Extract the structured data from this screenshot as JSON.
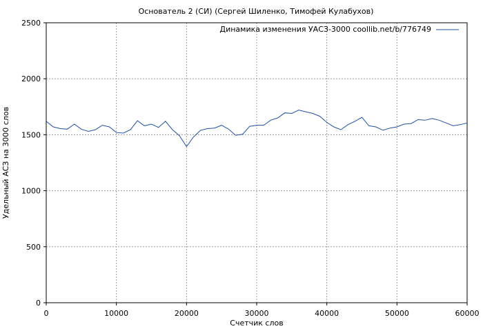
{
  "chart_data": {
    "type": "line",
    "title": "Основатель 2 (СИ) (Сергей Шиленко, Тимофей Кулабухов)",
    "xlabel": "Счетчик слов",
    "ylabel": "Удельный АСЗ на 3000 слов",
    "xlim": [
      0,
      60000
    ],
    "ylim": [
      0,
      2500
    ],
    "x_ticks": [
      0,
      10000,
      20000,
      30000,
      40000,
      50000,
      60000
    ],
    "x_tick_labels": [
      "0",
      "10000",
      "20000",
      "30000",
      "40000",
      "50000",
      "60000"
    ],
    "y_ticks": [
      0,
      500,
      1000,
      1500,
      2000,
      2500
    ],
    "y_tick_labels": [
      "0",
      "500",
      "1000",
      "1500",
      "2000",
      "2500"
    ],
    "grid": true,
    "legend_position": "top-right",
    "colors": {
      "series": "#1f4fa3",
      "grid": "#a0a0a0",
      "axis": "#000000"
    },
    "series": [
      {
        "name": "Динамика изменения УАСЗ-3000 coollib.net/b/776749",
        "x": [
          0,
          1000,
          2000,
          3000,
          4000,
          5000,
          6000,
          7000,
          8000,
          9000,
          10000,
          11000,
          12000,
          13000,
          14000,
          15000,
          16000,
          17000,
          18000,
          19000,
          20000,
          21000,
          22000,
          23000,
          24000,
          25000,
          26000,
          27000,
          28000,
          29000,
          30000,
          31000,
          32000,
          33000,
          34000,
          35000,
          36000,
          37000,
          38000,
          39000,
          40000,
          41000,
          42000,
          43000,
          44000,
          45000,
          46000,
          47000,
          48000,
          49000,
          50000,
          51000,
          52000,
          53000,
          54000,
          55000,
          56000,
          57000,
          58000,
          59000,
          60000
        ],
        "y": [
          1620,
          1570,
          1555,
          1550,
          1595,
          1550,
          1530,
          1545,
          1585,
          1570,
          1520,
          1515,
          1545,
          1625,
          1580,
          1595,
          1565,
          1620,
          1545,
          1490,
          1395,
          1480,
          1540,
          1555,
          1560,
          1585,
          1550,
          1495,
          1505,
          1575,
          1585,
          1585,
          1630,
          1650,
          1695,
          1690,
          1720,
          1705,
          1690,
          1665,
          1610,
          1570,
          1545,
          1590,
          1620,
          1655,
          1580,
          1570,
          1540,
          1560,
          1570,
          1595,
          1600,
          1635,
          1630,
          1645,
          1630,
          1605,
          1580,
          1590,
          1605
        ]
      }
    ]
  }
}
